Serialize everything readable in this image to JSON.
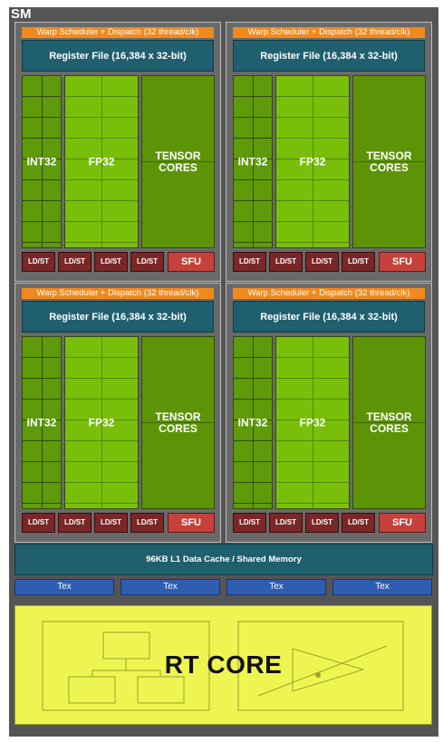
{
  "sm_label": "SM",
  "partition": {
    "warp_label": "Warp Scheduler + Dispatch (32 thread/clk)",
    "register_label": "Register File (16,384 x 32-bit)",
    "int32_label": "INT32",
    "fp32_label": "FP32",
    "tensor_label_line1": "TENSOR",
    "tensor_label_line2": "CORES",
    "ldst_label": "LD/ST",
    "sfu_label": "SFU"
  },
  "l1_label": "96KB L1 Data Cache / Shared Memory",
  "tex_units": [
    "Tex",
    "Tex",
    "Tex",
    "Tex"
  ],
  "rt_core_label": "RT CORE",
  "colors": {
    "sm_background": "#555555",
    "warp_scheduler": "#f08a1f",
    "register_file": "#1f5f6e",
    "int32": "#5f9a0a",
    "fp32": "#79bf0a",
    "tensor": "#5d9407",
    "ldst": "#7a2727",
    "sfu": "#c6413c",
    "tex": "#2f5db0",
    "rt_core": "#eef550"
  }
}
